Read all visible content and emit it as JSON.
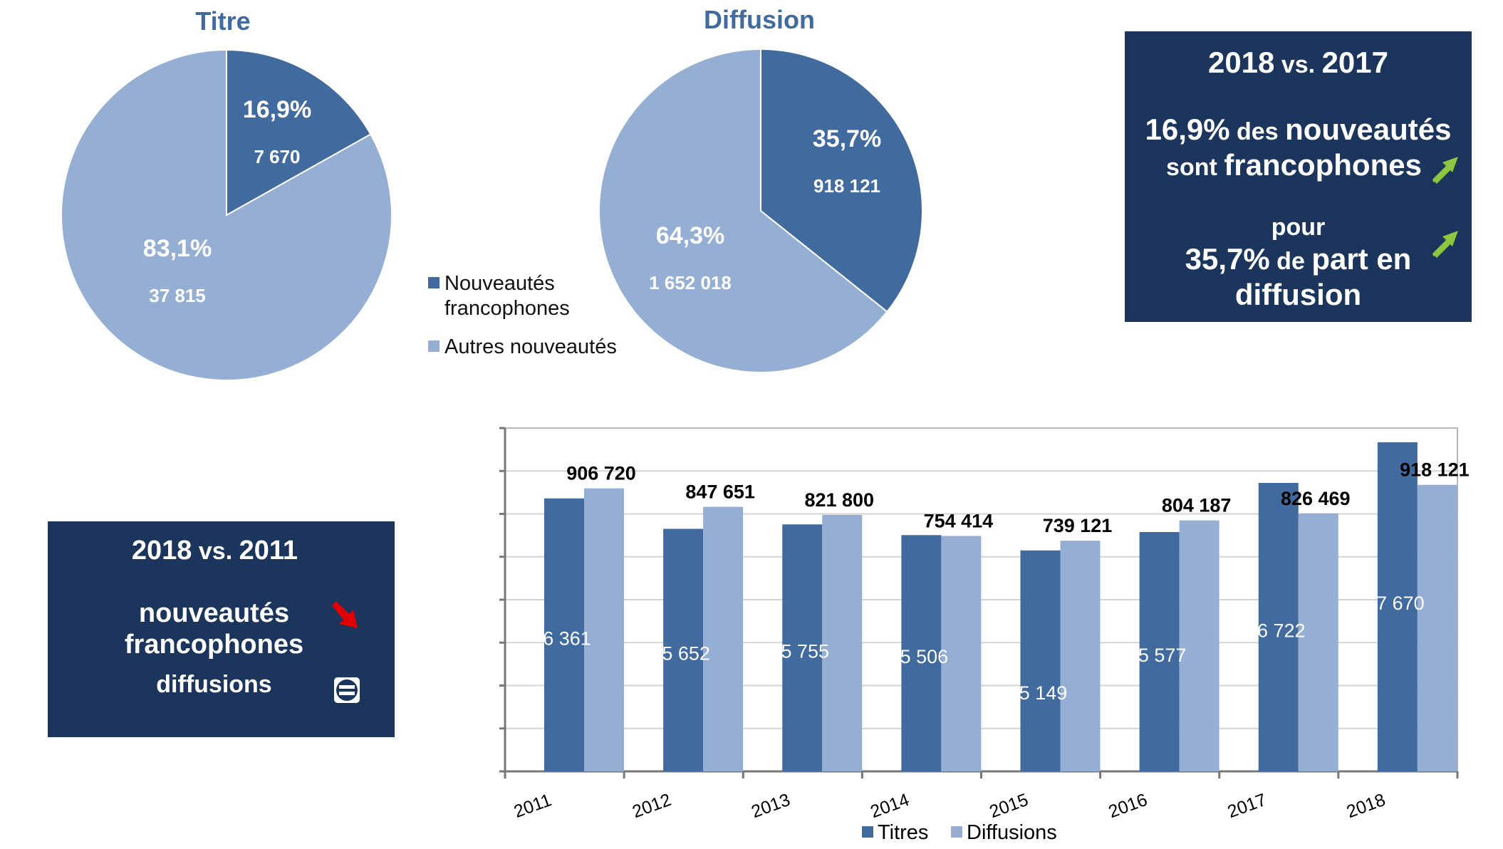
{
  "colors": {
    "dark_blue": "#416a9f",
    "light_blue": "#95afd4",
    "box_bg": "#1b355c",
    "title_text": "#416a9f",
    "arrow_up": "#8dc63f",
    "arrow_down": "#e00000"
  },
  "chart_data": [
    {
      "type": "pie",
      "title": "Titre",
      "slices": [
        {
          "label": "Nouveautés francophones",
          "percent_label": "16,9%",
          "value_label": "7 670",
          "value": 7670,
          "percent": 16.9
        },
        {
          "label": "Autres nouveautés",
          "percent_label": "83,1%",
          "value_label": "37 815",
          "value": 37815,
          "percent": 83.1
        }
      ]
    },
    {
      "type": "pie",
      "title": "Diffusion",
      "slices": [
        {
          "label": "Nouveautés francophones",
          "percent_label": "35,7%",
          "value_label": "918 121",
          "value": 918121,
          "percent": 35.7
        },
        {
          "label": "Autres nouveautés",
          "percent_label": "64,3%",
          "value_label": "1 652 018",
          "value": 1652018,
          "percent": 64.3
        }
      ]
    },
    {
      "type": "bar",
      "categories": [
        "2011",
        "2012",
        "2013",
        "2014",
        "2015",
        "2016",
        "2017",
        "2018"
      ],
      "series": [
        {
          "name": "Titres",
          "values": [
            6361,
            5652,
            5755,
            5506,
            5149,
            5577,
            6722,
            7670
          ],
          "labels": [
            "6 361",
            "5 652",
            "5 755",
            "5 506",
            "5 149",
            "5 577",
            "6 722",
            "7 670"
          ]
        },
        {
          "name": "Diffusions",
          "values": [
            906720,
            847651,
            821800,
            754414,
            739121,
            804187,
            826469,
            918121
          ],
          "labels": [
            "906 720",
            "847 651",
            "821 800",
            "754 414",
            "739 121",
            "804 187",
            "826 469",
            "918 121"
          ]
        }
      ],
      "legend": [
        "Titres",
        "Diffusions"
      ],
      "titres_axis_range": [
        0,
        8000
      ],
      "diffusions_axis_range": [
        0,
        1100000
      ],
      "gridlines": 8
    }
  ],
  "pie_legend": {
    "item1_line1": "Nouveautés",
    "item1_line2": "francophones",
    "item2": "Autres nouveautés"
  },
  "box_2017": {
    "title_year": "2018",
    "title_vs": " vs. ",
    "title_year2": "2017",
    "pct1": "16,9%",
    "des": " des ",
    "nouveautes": "nouveautés",
    "sont": "sont ",
    "francophones": "francophones",
    "pour": "pour",
    "pct2": "35,7%",
    "de": " de ",
    "part_en": "part en",
    "diffusion": "diffusion"
  },
  "box_2011": {
    "title_year": "2018",
    "title_vs": " vs. ",
    "title_year2": "2011",
    "line1": "nouveautés",
    "line2": "francophones",
    "line3": "diffusions"
  },
  "icons": {
    "up": "arrow-up-right-icon",
    "down": "arrow-down-right-icon",
    "equal": "equal-sign-icon"
  }
}
